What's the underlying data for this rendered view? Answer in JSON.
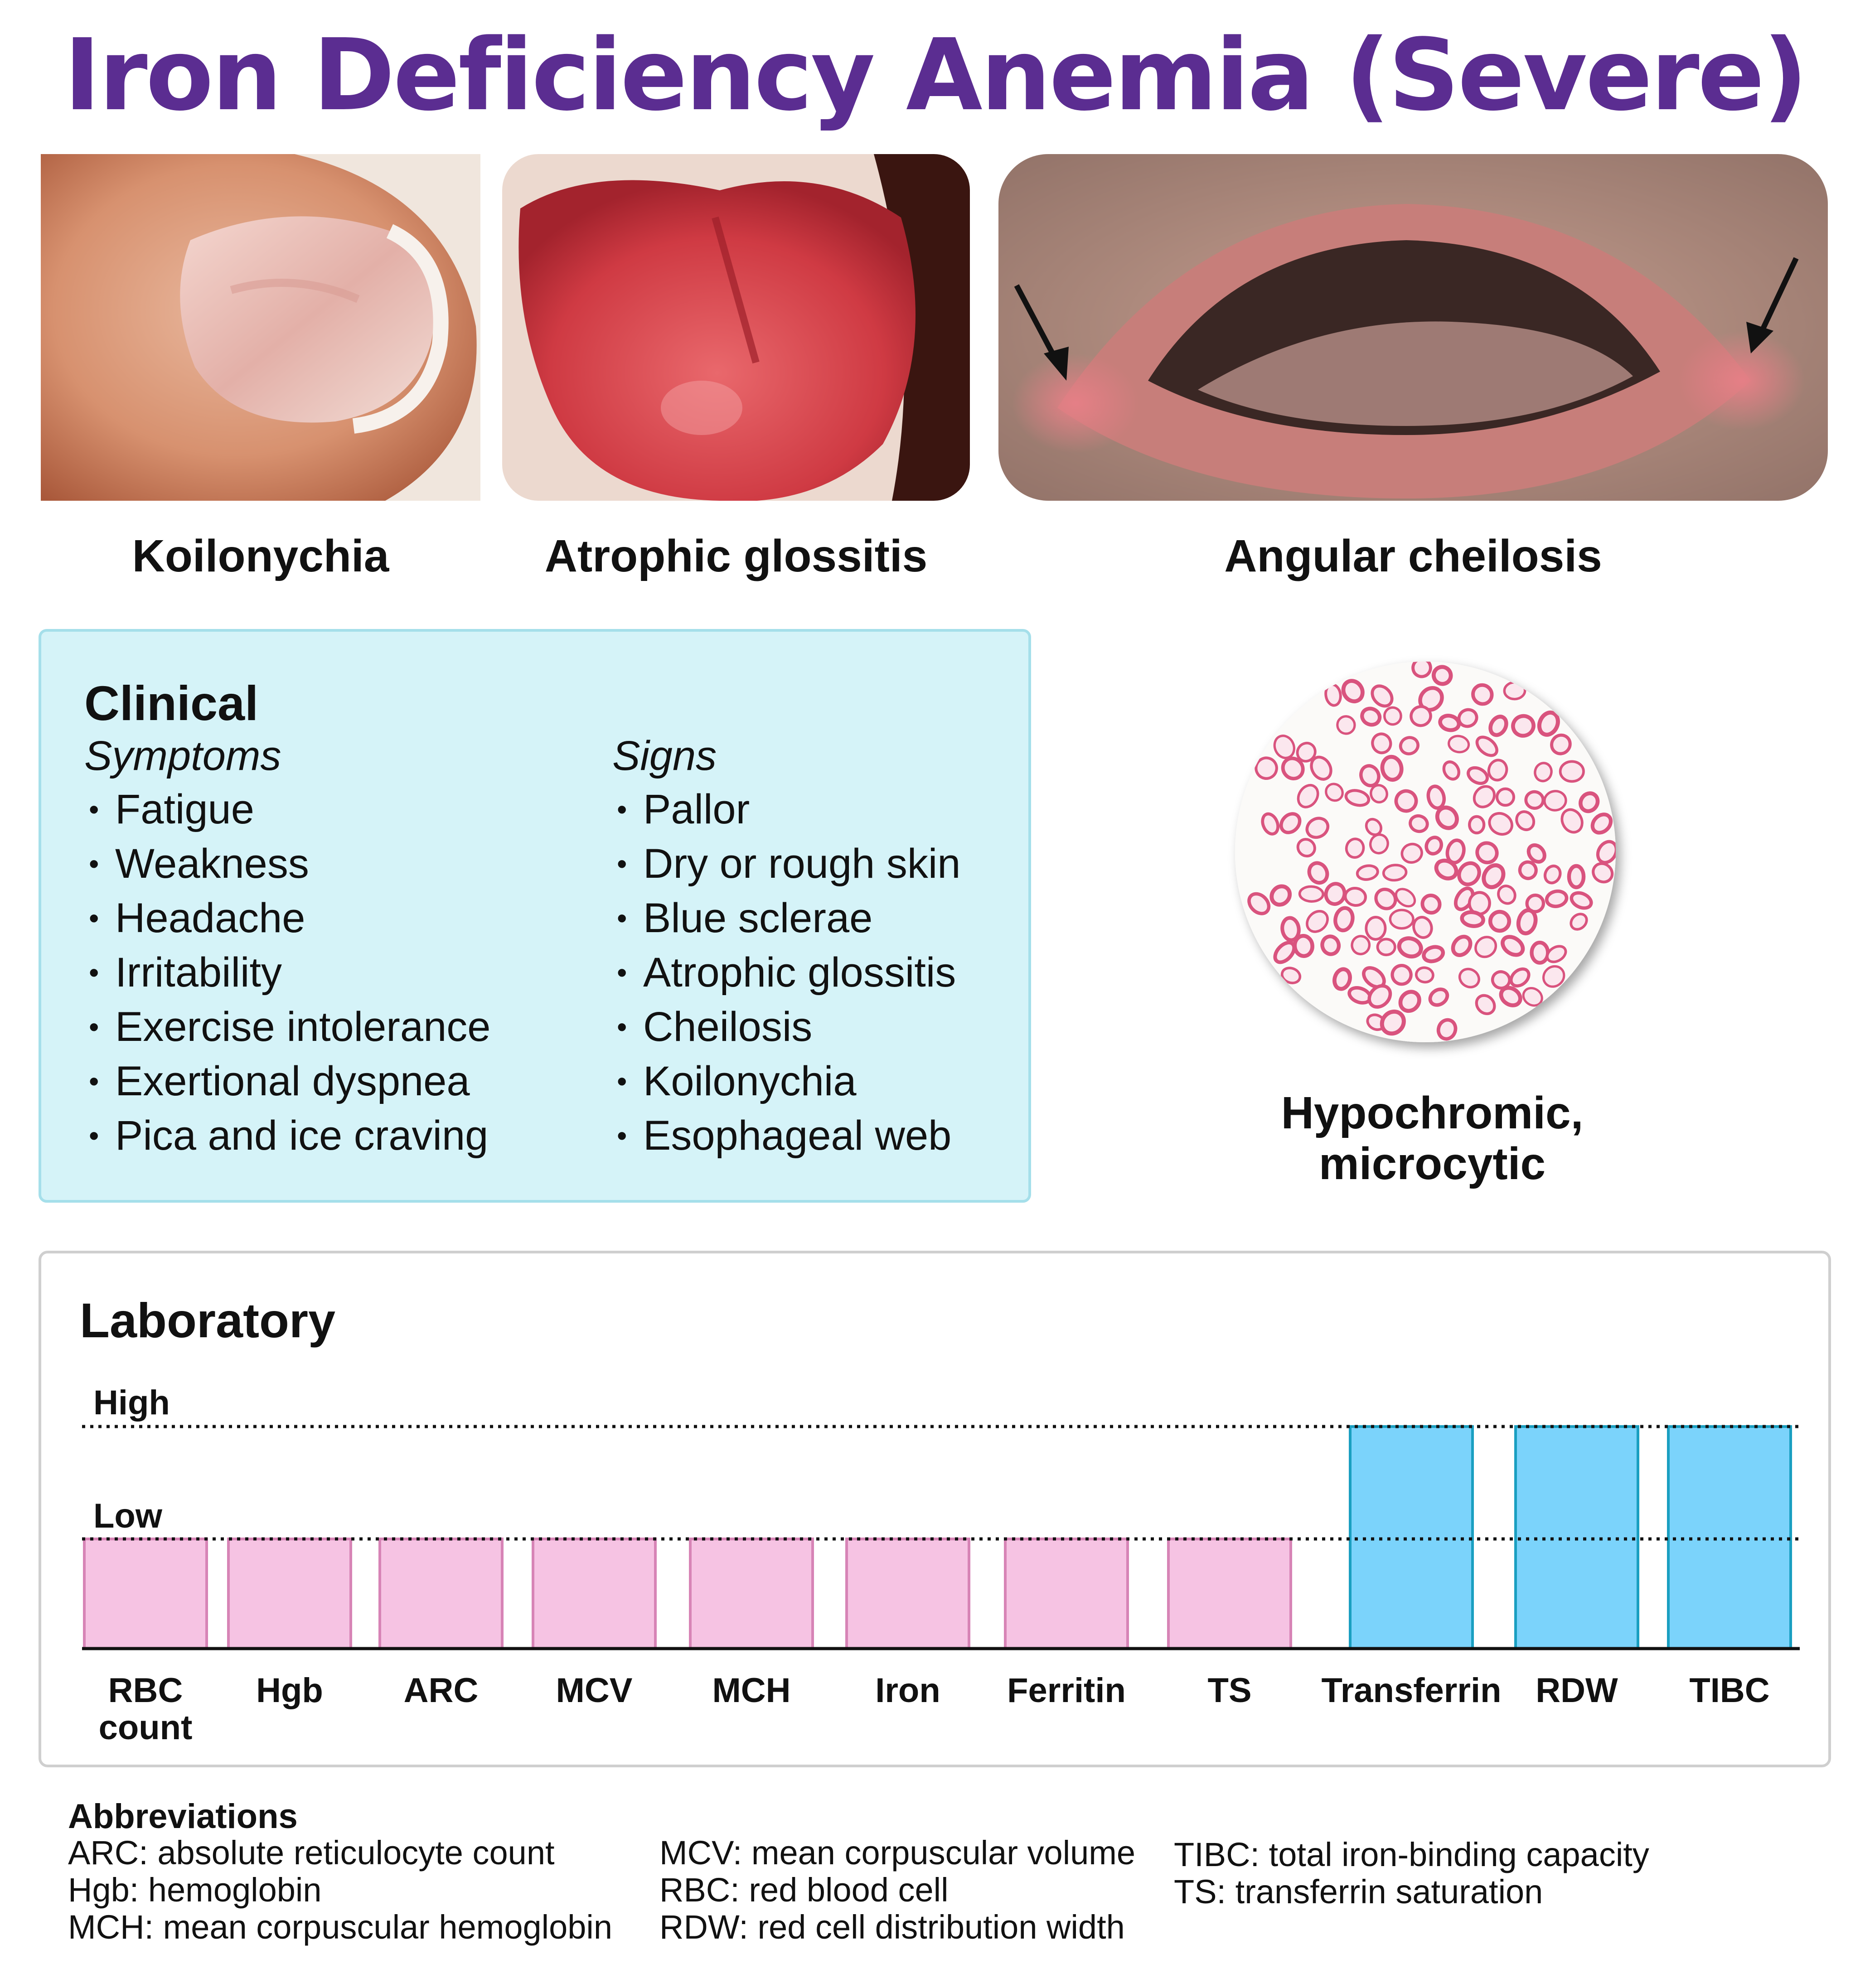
{
  "title": "Iron Deficiency Anemia (Severe)",
  "photos": [
    {
      "caption": "Koilonychia"
    },
    {
      "caption": "Atrophic glossitis"
    },
    {
      "caption": "Angular cheilosis"
    }
  ],
  "clinical": {
    "title": "Clinical",
    "symptoms_heading": "Symptoms",
    "symptoms": [
      "Fatigue",
      "Weakness",
      "Headache",
      "Irritability",
      "Exercise intolerance",
      "Exertional dyspnea",
      "Pica and ice craving"
    ],
    "signs_heading": "Signs",
    "signs": [
      "Pallor",
      "Dry or rough skin",
      "Blue sclerae",
      "Atrophic glossitis",
      "Cheilosis",
      "Koilonychia",
      "Esophageal web"
    ]
  },
  "smear": {
    "caption_line1": "Hypochromic,",
    "caption_line2": "microcytic"
  },
  "laboratory": {
    "title": "Laboratory",
    "high_label": "High",
    "low_label": "Low",
    "low_color": "#f6c3e3",
    "high_color": "#7bd3fb",
    "tests": [
      {
        "label": [
          "RBC",
          "count"
        ],
        "level": "low"
      },
      {
        "label": [
          "Hgb"
        ],
        "level": "low"
      },
      {
        "label": [
          "ARC"
        ],
        "level": "low"
      },
      {
        "label": [
          "MCV"
        ],
        "level": "low"
      },
      {
        "label": [
          "MCH"
        ],
        "level": "low"
      },
      {
        "label": [
          "Iron"
        ],
        "level": "low"
      },
      {
        "label": [
          "Ferritin"
        ],
        "level": "low"
      },
      {
        "label": [
          "TS"
        ],
        "level": "low"
      },
      {
        "label": [
          "Transferrin"
        ],
        "level": "high"
      },
      {
        "label": [
          "RDW"
        ],
        "level": "high"
      },
      {
        "label": [
          "TIBC"
        ],
        "level": "high"
      }
    ]
  },
  "abbreviations": {
    "title": "Abbreviations",
    "col1": [
      "ARC: absolute reticulocyte count",
      "Hgb: hemoglobin",
      "MCH: mean corpuscular hemoglobin"
    ],
    "col2": [
      "MCV: mean corpuscular volume",
      "RBC: red blood cell",
      "RDW: red cell distribution width"
    ],
    "col3": [
      "TIBC: total iron-binding capacity",
      "TS: transferrin saturation"
    ]
  }
}
